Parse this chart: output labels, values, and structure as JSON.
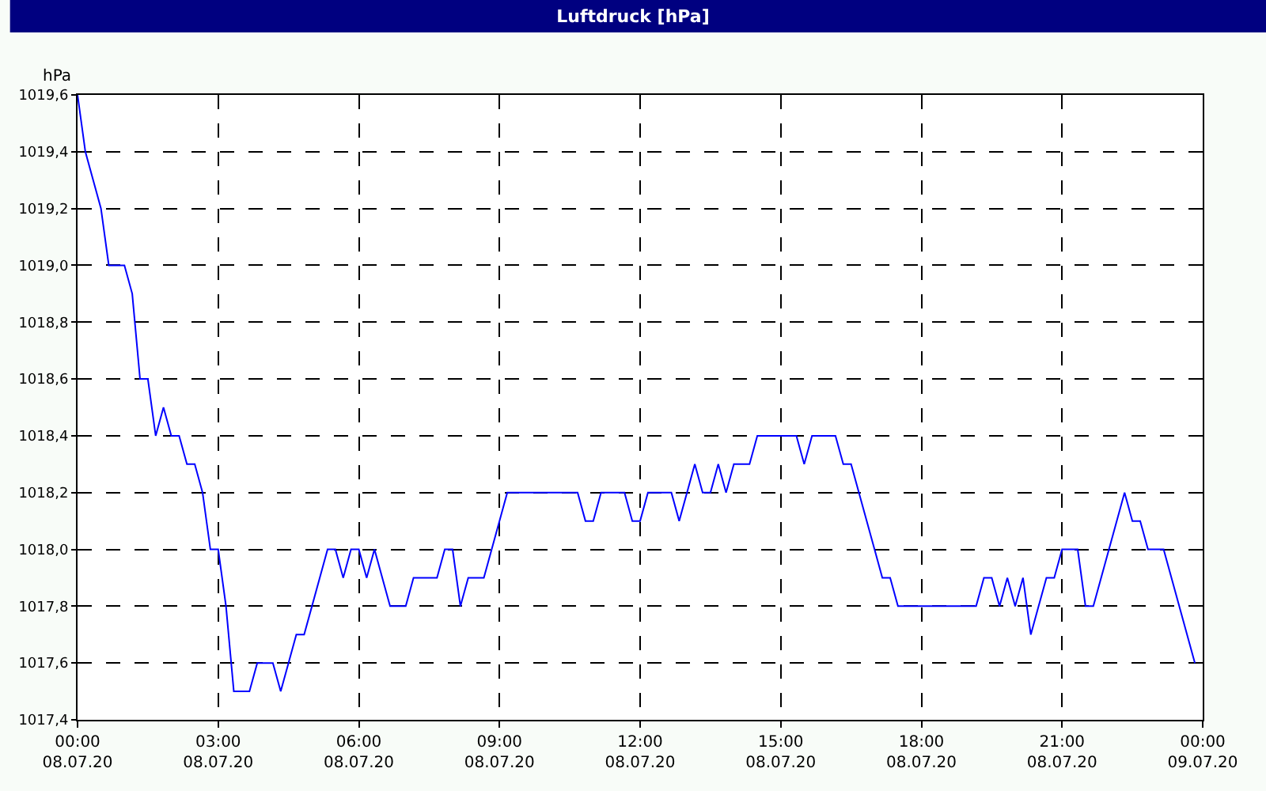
{
  "chart_data": {
    "type": "line",
    "title": "Luftdruck [hPa]",
    "ylabel": "hPa",
    "x": [
      "--07-08T00:00",
      "--07-08T00:10",
      "--07-08T00:20",
      "--07-08T00:30",
      "--07-08T00:40",
      "--07-08T01:00",
      "--07-08T01:10",
      "--07-08T01:20",
      "--07-08T01:30",
      "--07-08T01:40",
      "--07-08T01:50",
      "--07-08T02:00",
      "--07-08T02:10",
      "--07-08T02:20",
      "--07-08T02:30",
      "--07-08T02:40",
      "--07-08T02:50",
      "--07-08T03:00",
      "--07-08T03:10",
      "--07-08T03:20",
      "--07-08T03:40",
      "--07-08T03:50",
      "--07-08T04:10",
      "--07-08T04:20",
      "--07-08T04:30",
      "--07-08T04:40",
      "--07-08T04:50",
      "--07-08T05:00",
      "--07-08T05:20",
      "--07-08T05:30",
      "--07-08T05:40",
      "--07-08T05:50",
      "--07-08T06:00",
      "--07-08T06:10",
      "--07-08T06:20",
      "--07-08T06:40",
      "--07-08T07:00",
      "--07-08T07:10",
      "--07-08T07:40",
      "--07-08T07:50",
      "--07-08T08:00",
      "--07-08T08:10",
      "--07-08T08:20",
      "--07-08T08:40",
      "--07-08T09:10",
      "--07-08T10:40",
      "--07-08T10:50",
      "--07-08T11:00",
      "--07-08T11:10",
      "--07-08T11:40",
      "--07-08T11:50",
      "--07-08T12:00",
      "--07-08T12:10",
      "--07-08T12:40",
      "--07-08T12:50",
      "--07-08T13:00",
      "--07-08T13:10",
      "--07-08T13:20",
      "--07-08T13:30",
      "--07-08T13:40",
      "--07-08T13:50",
      "--07-08T14:00",
      "--07-08T14:20",
      "--07-08T14:30",
      "--07-08T15:20",
      "--07-08T15:30",
      "--07-08T15:40",
      "--07-08T16:10",
      "--07-08T16:20",
      "--07-08T16:30",
      "--07-08T16:40",
      "--07-08T17:00",
      "--07-08T17:10",
      "--07-08T17:20",
      "--07-08T17:30",
      "--07-08T19:10",
      "--07-08T19:20",
      "--07-08T19:30",
      "--07-08T19:40",
      "--07-08T19:50",
      "--07-08T20:00",
      "--07-08T20:10",
      "--07-08T20:20",
      "--07-08T20:30",
      "--07-08T20:40",
      "--07-08T20:50",
      "--07-08T21:00",
      "--07-08T21:20",
      "--07-08T21:30",
      "--07-08T21:40",
      "--07-08T22:20",
      "--07-08T22:30",
      "--07-08T22:40",
      "--07-08T22:50",
      "--07-08T23:10",
      "--07-08T23:50"
    ],
    "series": [
      {
        "color": "#0000ff",
        "values": [
          1019.6,
          1019.4,
          1019.3,
          1019.2,
          1019.0,
          1019.0,
          1018.9,
          1018.6,
          1018.6,
          1018.4,
          1018.5,
          1018.4,
          1018.4,
          1018.3,
          1018.3,
          1018.2,
          1018.0,
          1018.0,
          1017.8,
          1017.5,
          1017.5,
          1017.6,
          1017.6,
          1017.5,
          1017.6,
          1017.7,
          1017.7,
          1017.8,
          1018.0,
          1018.0,
          1017.9,
          1018.0,
          1018.0,
          1017.9,
          1018.0,
          1017.8,
          1017.8,
          1017.9,
          1017.9,
          1018.0,
          1018.0,
          1017.8,
          1017.9,
          1017.9,
          1018.2,
          1018.2,
          1018.1,
          1018.1,
          1018.2,
          1018.2,
          1018.1,
          1018.1,
          1018.2,
          1018.2,
          1018.1,
          1018.2,
          1018.3,
          1018.2,
          1018.2,
          1018.3,
          1018.2,
          1018.3,
          1018.3,
          1018.4,
          1018.4,
          1018.3,
          1018.4,
          1018.4,
          1018.3,
          1018.3,
          1018.2,
          1018.0,
          1017.9,
          1017.9,
          1017.8,
          1017.8,
          1017.9,
          1017.9,
          1017.8,
          1017.9,
          1017.8,
          1017.9,
          1017.7,
          1017.8,
          1017.9,
          1017.9,
          1018.0,
          1018.0,
          1017.8,
          1017.8,
          1018.2,
          1018.1,
          1018.1,
          1018.0,
          1018.0,
          1017.6
        ]
      }
    ],
    "xlim": [
      "--07-08T00:00",
      "--07-09T00:00"
    ],
    "xticks": [
      {
        "value": "--07-08T00:00",
        "label": "00:00\n08.07.20"
      },
      {
        "value": "--07-08T03:00",
        "label": "03:00\n08.07.20"
      },
      {
        "value": "--07-08T06:00",
        "label": "06:00\n08.07.20"
      },
      {
        "value": "--07-08T09:00",
        "label": "09:00\n08.07.20"
      },
      {
        "value": "--07-08T12:00",
        "label": "12:00\n08.07.20"
      },
      {
        "value": "--07-08T15:00",
        "label": "15:00\n08.07.20"
      },
      {
        "value": "--07-08T18:00",
        "label": "18:00\n08.07.20"
      },
      {
        "value": "--07-08T21:00",
        "label": "21:00\n08.07.20"
      },
      {
        "value": "--07-09T00:00",
        "label": "00:00\n09.07.20"
      }
    ],
    "ylim": [
      1017.4,
      1019.6
    ],
    "yticks": [
      {
        "value": 1017.4,
        "label": "1017,4"
      },
      {
        "value": 1017.6,
        "label": "1017,6"
      },
      {
        "value": 1017.8,
        "label": "1017,8"
      },
      {
        "value": 1018.0,
        "label": "1018,0"
      },
      {
        "value": 1018.2,
        "label": "1018,2"
      },
      {
        "value": 1018.4,
        "label": "1018,4"
      },
      {
        "value": 1018.6,
        "label": "1018,6"
      },
      {
        "value": 1018.8,
        "label": "1018,8"
      },
      {
        "value": 1019.0,
        "label": "1019,0"
      },
      {
        "value": 1019.2,
        "label": "1019,2"
      },
      {
        "value": 1019.4,
        "label": "1019,4"
      },
      {
        "value": 1019.6,
        "label": "1019,6"
      }
    ],
    "grid": true,
    "marker": "none",
    "line_style": "solid"
  }
}
